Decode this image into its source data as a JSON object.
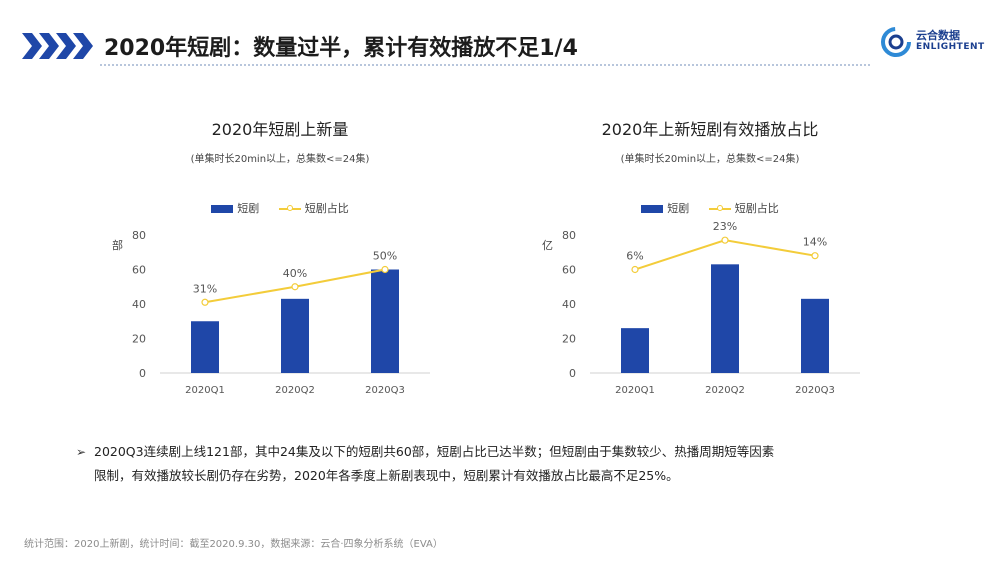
{
  "header": {
    "title": "2020年短剧：数量过半，累计有效播放不足1/4",
    "logo_cn": "云合数据",
    "logo_en": "ENLIGHTENT"
  },
  "charts": [
    {
      "title": "2020年短剧上新量",
      "subtitle": "(单集时长20min以上，总集数<=24集)",
      "legend_bar": "短剧",
      "legend_line": "短剧占比",
      "y_unit": "部",
      "yticks": [
        "80",
        "60",
        "40",
        "20",
        "0"
      ],
      "categories": [
        "2020Q1",
        "2020Q2",
        "2020Q3"
      ],
      "labels": [
        "31%",
        "40%",
        "50%"
      ]
    },
    {
      "title": "2020年上新短剧有效播放占比",
      "subtitle": "(单集时长20min以上，总集数<=24集)",
      "legend_bar": "短剧",
      "legend_line": "短剧占比",
      "y_unit": "亿",
      "yticks": [
        "80",
        "60",
        "40",
        "20",
        "0"
      ],
      "categories": [
        "2020Q1",
        "2020Q2",
        "2020Q3"
      ],
      "labels": [
        "6%",
        "23%",
        "14%"
      ]
    }
  ],
  "chart_data": [
    {
      "type": "bar",
      "title": "2020年短剧上新量",
      "subtitle": "(单集时长20min以上，总集数<=24集)",
      "categories": [
        "2020Q1",
        "2020Q2",
        "2020Q3"
      ],
      "series": [
        {
          "name": "短剧",
          "type": "bar",
          "values": [
            30,
            43,
            60
          ]
        },
        {
          "name": "短剧占比",
          "type": "line",
          "values": [
            31,
            40,
            50
          ],
          "unit": "%"
        }
      ],
      "ylabel": "部",
      "ylim": [
        0,
        80
      ],
      "legend": "top"
    },
    {
      "type": "bar",
      "title": "2020年上新短剧有效播放占比",
      "subtitle": "(单集时长20min以上，总集数<=24集)",
      "categories": [
        "2020Q1",
        "2020Q2",
        "2020Q3"
      ],
      "series": [
        {
          "name": "短剧",
          "type": "bar",
          "values": [
            26,
            63,
            43
          ]
        },
        {
          "name": "短剧占比",
          "type": "line",
          "values": [
            6,
            23,
            14
          ],
          "unit": "%"
        }
      ],
      "ylabel": "亿",
      "ylim": [
        0,
        80
      ],
      "legend": "top"
    }
  ],
  "colors": {
    "bar": "#1f47a8",
    "line": "#f3cc3a",
    "chevron": "#1f47a8"
  },
  "bullet": {
    "mark": "➢",
    "line1": "2020Q3连续剧上线121部，其中24集及以下的短剧共60部，短剧占比已达半数；但短剧由于集数较少、热播周期短等因素",
    "line2": "限制，有效播放较长剧仍存在劣势，2020年各季度上新剧表现中，短剧累计有效播放占比最高不足25%。"
  },
  "footer": "统计范围：2020上新剧，统计时间：截至2020.9.30，数据来源：云合·四象分析系统（EVA）"
}
